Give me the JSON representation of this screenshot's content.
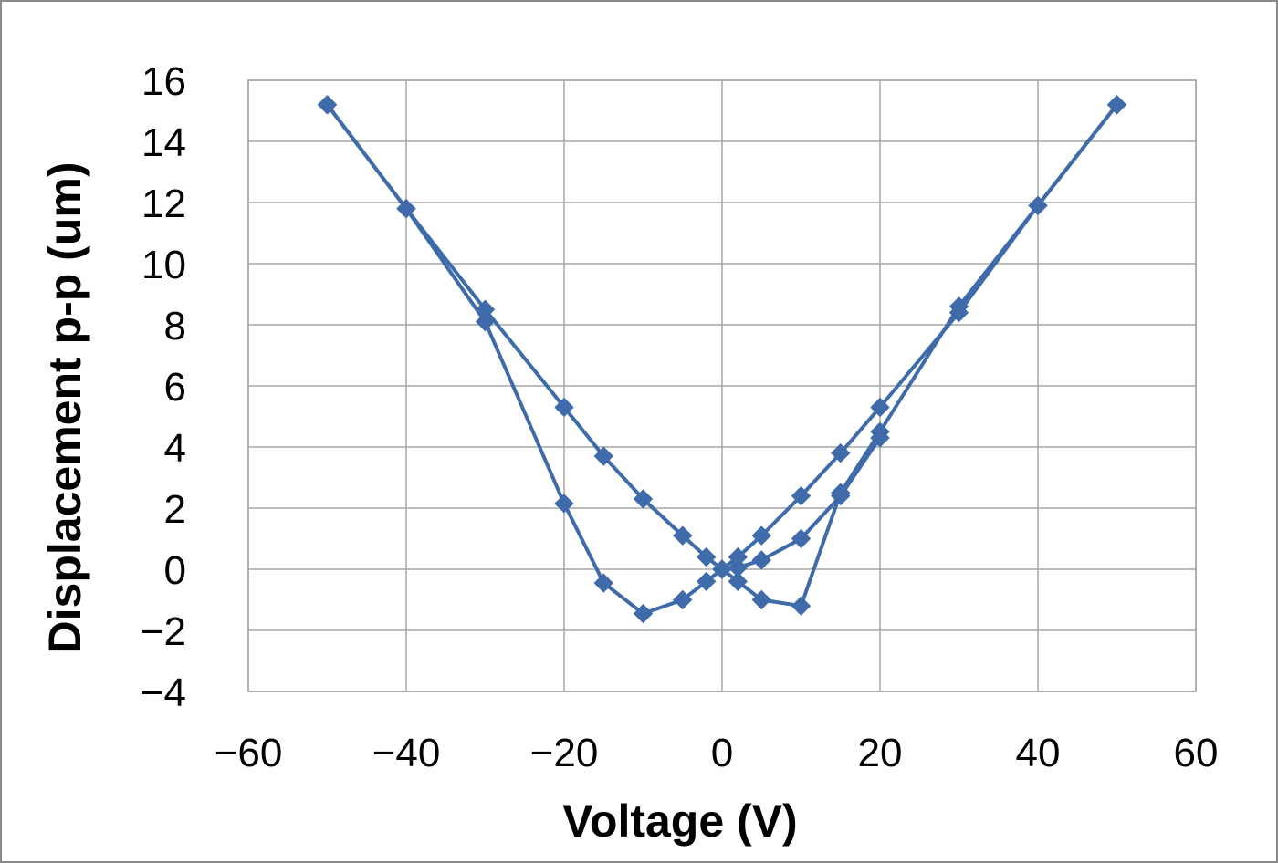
{
  "chart_data": {
    "type": "line",
    "title": "",
    "xlabel": "Voltage (V)",
    "ylabel": "Displacement p-p (um)",
    "xlim": [
      -60,
      60
    ],
    "ylim": [
      -4,
      16
    ],
    "xticks": [
      -60,
      -40,
      -20,
      0,
      20,
      40,
      60
    ],
    "yticks": [
      -4,
      -2,
      0,
      2,
      4,
      6,
      8,
      10,
      12,
      14,
      16
    ],
    "xtick_labels": [
      "−60",
      "−40",
      "−20",
      "0",
      "20",
      "40",
      "60"
    ],
    "ytick_labels": [
      "−4",
      "−2",
      "0",
      "2",
      "4",
      "6",
      "8",
      "10",
      "12",
      "14",
      "16"
    ],
    "grid": true,
    "legend": "none",
    "series_color": "#3F6BAA",
    "marker": "diamond",
    "series": [
      {
        "x": [
          -50,
          -40,
          -30,
          -20,
          -15,
          -10,
          -5,
          -2,
          0,
          2,
          5,
          10,
          15,
          20,
          30,
          40,
          50
        ],
        "y": [
          15.2,
          11.8,
          8.5,
          5.3,
          3.7,
          2.3,
          1.1,
          0.4,
          0.0,
          -0.4,
          -1.0,
          -1.2,
          2.5,
          4.5,
          8.6,
          11.9,
          15.2
        ]
      },
      {
        "x": [
          50,
          40,
          30,
          20,
          15,
          10,
          5,
          2,
          0,
          -2,
          -5,
          -10,
          -15,
          -20,
          -30,
          -40,
          -50
        ],
        "y": [
          15.2,
          11.9,
          8.4,
          5.3,
          3.8,
          2.4,
          1.1,
          0.4,
          0.0,
          -0.4,
          -1.0,
          -1.45,
          -0.45,
          2.15,
          8.1,
          11.8,
          15.2
        ]
      },
      {
        "x": [
          2,
          5,
          10,
          15,
          20
        ],
        "y": [
          0.05,
          0.3,
          1.0,
          2.4,
          4.3
        ]
      }
    ]
  }
}
